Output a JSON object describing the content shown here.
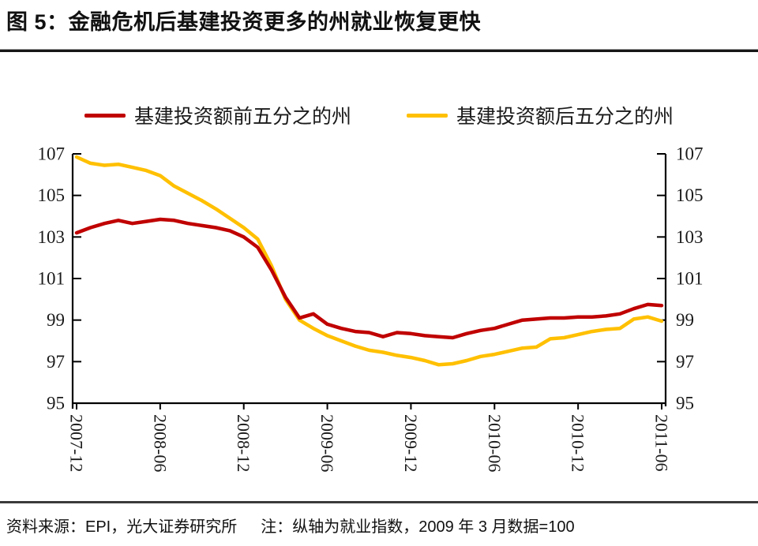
{
  "title": {
    "text": "图 5：金融危机后基建投资更多的州就业恢复更快"
  },
  "legend": {
    "items": [
      {
        "label": "基建投资额前五分之的州",
        "color": "#C00000"
      },
      {
        "label": "基建投资额后五分之的州",
        "color": "#FFC000"
      }
    ]
  },
  "footer": {
    "source": "资料来源：EPI，光大证券研究所",
    "note": "注：纵轴为就业指数，2009 年 3 月数据=100"
  },
  "chart_data": {
    "type": "line",
    "title": "",
    "xlabel": "",
    "ylabel": "就业指数",
    "ylim": [
      95,
      107
    ],
    "y_ticks": [
      95,
      97,
      99,
      101,
      103,
      105,
      107
    ],
    "grid": false,
    "legend_position": "top",
    "x_tick_labels": [
      "2007-12",
      "2008-06",
      "2008-12",
      "2009-06",
      "2009-12",
      "2010-06",
      "2010-12",
      "2011-06"
    ],
    "x_tick_indices": [
      0,
      6,
      12,
      18,
      24,
      30,
      36,
      42
    ],
    "x": [
      "2007-12",
      "2008-01",
      "2008-02",
      "2008-03",
      "2008-04",
      "2008-05",
      "2008-06",
      "2008-07",
      "2008-08",
      "2008-09",
      "2008-10",
      "2008-11",
      "2008-12",
      "2009-01",
      "2009-02",
      "2009-03",
      "2009-04",
      "2009-05",
      "2009-06",
      "2009-07",
      "2009-08",
      "2009-09",
      "2009-10",
      "2009-11",
      "2009-12",
      "2010-01",
      "2010-02",
      "2010-03",
      "2010-04",
      "2010-05",
      "2010-06",
      "2010-07",
      "2010-08",
      "2010-09",
      "2010-10",
      "2010-11",
      "2010-12",
      "2011-01",
      "2011-02",
      "2011-03",
      "2011-04",
      "2011-05",
      "2011-06"
    ],
    "series": [
      {
        "name": "基建投资额前五分之的州",
        "color": "#C00000",
        "values": [
          103.2,
          103.45,
          103.65,
          103.8,
          103.65,
          103.75,
          103.85,
          103.8,
          103.65,
          103.55,
          103.45,
          103.3,
          103.0,
          102.5,
          101.4,
          100.1,
          99.1,
          99.3,
          98.8,
          98.6,
          98.45,
          98.4,
          98.2,
          98.4,
          98.35,
          98.25,
          98.2,
          98.15,
          98.35,
          98.5,
          98.6,
          98.8,
          99.0,
          99.05,
          99.1,
          99.1,
          99.15,
          99.15,
          99.2,
          99.3,
          99.55,
          99.75,
          99.7
        ]
      },
      {
        "name": "基建投资额后五分之的州",
        "color": "#FFC000",
        "values": [
          106.85,
          106.55,
          106.45,
          106.5,
          106.35,
          106.2,
          105.95,
          105.45,
          105.1,
          104.75,
          104.35,
          103.9,
          103.45,
          102.9,
          101.6,
          100.0,
          99.0,
          98.6,
          98.25,
          98.0,
          97.75,
          97.55,
          97.45,
          97.3,
          97.2,
          97.05,
          96.85,
          96.9,
          97.05,
          97.25,
          97.35,
          97.5,
          97.65,
          97.7,
          98.1,
          98.15,
          98.3,
          98.45,
          98.55,
          98.6,
          99.05,
          99.15,
          98.95
        ]
      }
    ]
  }
}
